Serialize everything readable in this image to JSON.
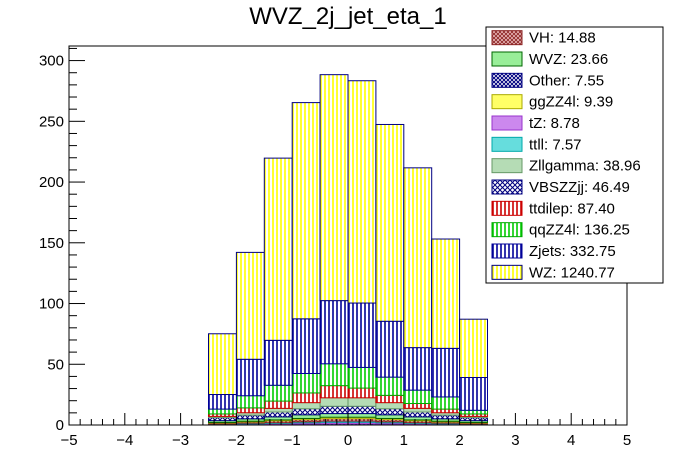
{
  "chart_data": {
    "type": "bar",
    "stacked": true,
    "title": "WVZ_2j_jet_eta_1",
    "xlabel": "",
    "ylabel": "",
    "xlim": [
      -5,
      5
    ],
    "ylim": [
      0,
      312
    ],
    "x_ticks": [
      -5,
      -4,
      -3,
      -2,
      -1,
      0,
      1,
      2,
      3,
      4,
      5
    ],
    "y_ticks": [
      0,
      50,
      100,
      150,
      200,
      250,
      300
    ],
    "bin_edges": [
      -2.5,
      -2.0,
      -1.5,
      -1.0,
      -0.5,
      0.0,
      0.5,
      1.0,
      1.5,
      2.0,
      2.5
    ],
    "series": [
      {
        "name": "Other",
        "color": "#000080",
        "pattern": "grid",
        "values": [
          0.3,
          0.5,
          0.6,
          0.9,
          1.0,
          1.0,
          0.9,
          0.6,
          0.5,
          0.3
        ]
      },
      {
        "name": "tZ",
        "color": "#9933cc",
        "fill": "#cc88ee",
        "pattern": "solid",
        "values": [
          0.3,
          0.5,
          0.7,
          0.9,
          1.2,
          1.2,
          0.9,
          0.7,
          0.5,
          0.3
        ]
      },
      {
        "name": "ttll",
        "color": "#00aaaa",
        "fill": "#66dddd",
        "pattern": "solid",
        "values": [
          0.3,
          0.5,
          0.6,
          0.8,
          1.0,
          1.0,
          0.8,
          0.6,
          0.5,
          0.3
        ]
      },
      {
        "name": "VH",
        "color": "#8b2323",
        "pattern": "cross",
        "values": [
          0.8,
          1.0,
          1.5,
          1.8,
          2.0,
          2.0,
          1.8,
          1.5,
          1.0,
          0.8
        ]
      },
      {
        "name": "ggZZ4l",
        "color": "#aaaa00",
        "fill": "#ffff66",
        "pattern": "solid",
        "values": [
          0.4,
          0.6,
          0.8,
          1.0,
          1.2,
          1.2,
          1.0,
          0.8,
          0.6,
          0.4
        ]
      },
      {
        "name": "WVZ",
        "color": "#006600",
        "fill": "#99ee99",
        "pattern": "solid",
        "values": [
          1.5,
          2.0,
          2.5,
          3.0,
          3.0,
          3.0,
          3.0,
          2.5,
          2.0,
          1.5
        ]
      },
      {
        "name": "VBSZZjj",
        "color": "#000080",
        "pattern": "diag",
        "values": [
          2.5,
          3.0,
          4.0,
          5.0,
          6.0,
          6.0,
          5.0,
          4.0,
          3.0,
          2.5
        ]
      },
      {
        "name": "Zllgamma",
        "color": "#669966",
        "fill": "#b5dcb5",
        "pattern": "solid",
        "values": [
          1.0,
          2.0,
          3.0,
          5.0,
          7.0,
          7.0,
          5.0,
          3.0,
          2.0,
          1.0
        ]
      },
      {
        "name": "ttdilep",
        "color": "#cc0000",
        "pattern": "vline-red",
        "values": [
          2.0,
          4.0,
          6.0,
          8.0,
          10.0,
          8.0,
          6.0,
          4.0,
          3.0,
          2.0
        ]
      },
      {
        "name": "qqZZ4l",
        "color": "#00aa00",
        "pattern": "vline-green",
        "values": [
          4.0,
          10.0,
          13.0,
          16.0,
          18.0,
          17.0,
          15.0,
          11.0,
          10.0,
          3.0
        ]
      },
      {
        "name": "Zjets",
        "color": "#000099",
        "pattern": "vline-blue",
        "values": [
          12.0,
          30.0,
          37.0,
          45.0,
          52.0,
          53.0,
          46.0,
          35.0,
          40.0,
          27.0
        ]
      },
      {
        "name": "WZ",
        "color": "#000080",
        "fill": "#ffff00",
        "pattern": "vline-yellow",
        "values": [
          50.0,
          88.0,
          150.0,
          178.0,
          186.0,
          183.0,
          162.0,
          148.0,
          90.0,
          48.0
        ]
      }
    ],
    "legend": {
      "placement": "top-right",
      "entries": [
        {
          "label": "VH: 14.88",
          "series": "VH"
        },
        {
          "label": "WVZ: 23.66",
          "series": "WVZ"
        },
        {
          "label": "Other: 7.55",
          "series": "Other"
        },
        {
          "label": "ggZZ4l: 9.39",
          "series": "ggZZ4l"
        },
        {
          "label": "tZ: 8.78",
          "series": "tZ"
        },
        {
          "label": "ttll: 7.57",
          "series": "ttll"
        },
        {
          "label": "Zllgamma: 38.96",
          "series": "Zllgamma"
        },
        {
          "label": "VBSZZjj: 46.49",
          "series": "VBSZZjj"
        },
        {
          "label": "ttdilep: 87.40",
          "series": "ttdilep"
        },
        {
          "label": "qqZZ4l: 136.25",
          "series": "qqZZ4l"
        },
        {
          "label": "Zjets: 332.75",
          "series": "Zjets"
        },
        {
          "label": "WZ: 1240.77",
          "series": "WZ"
        }
      ]
    }
  }
}
